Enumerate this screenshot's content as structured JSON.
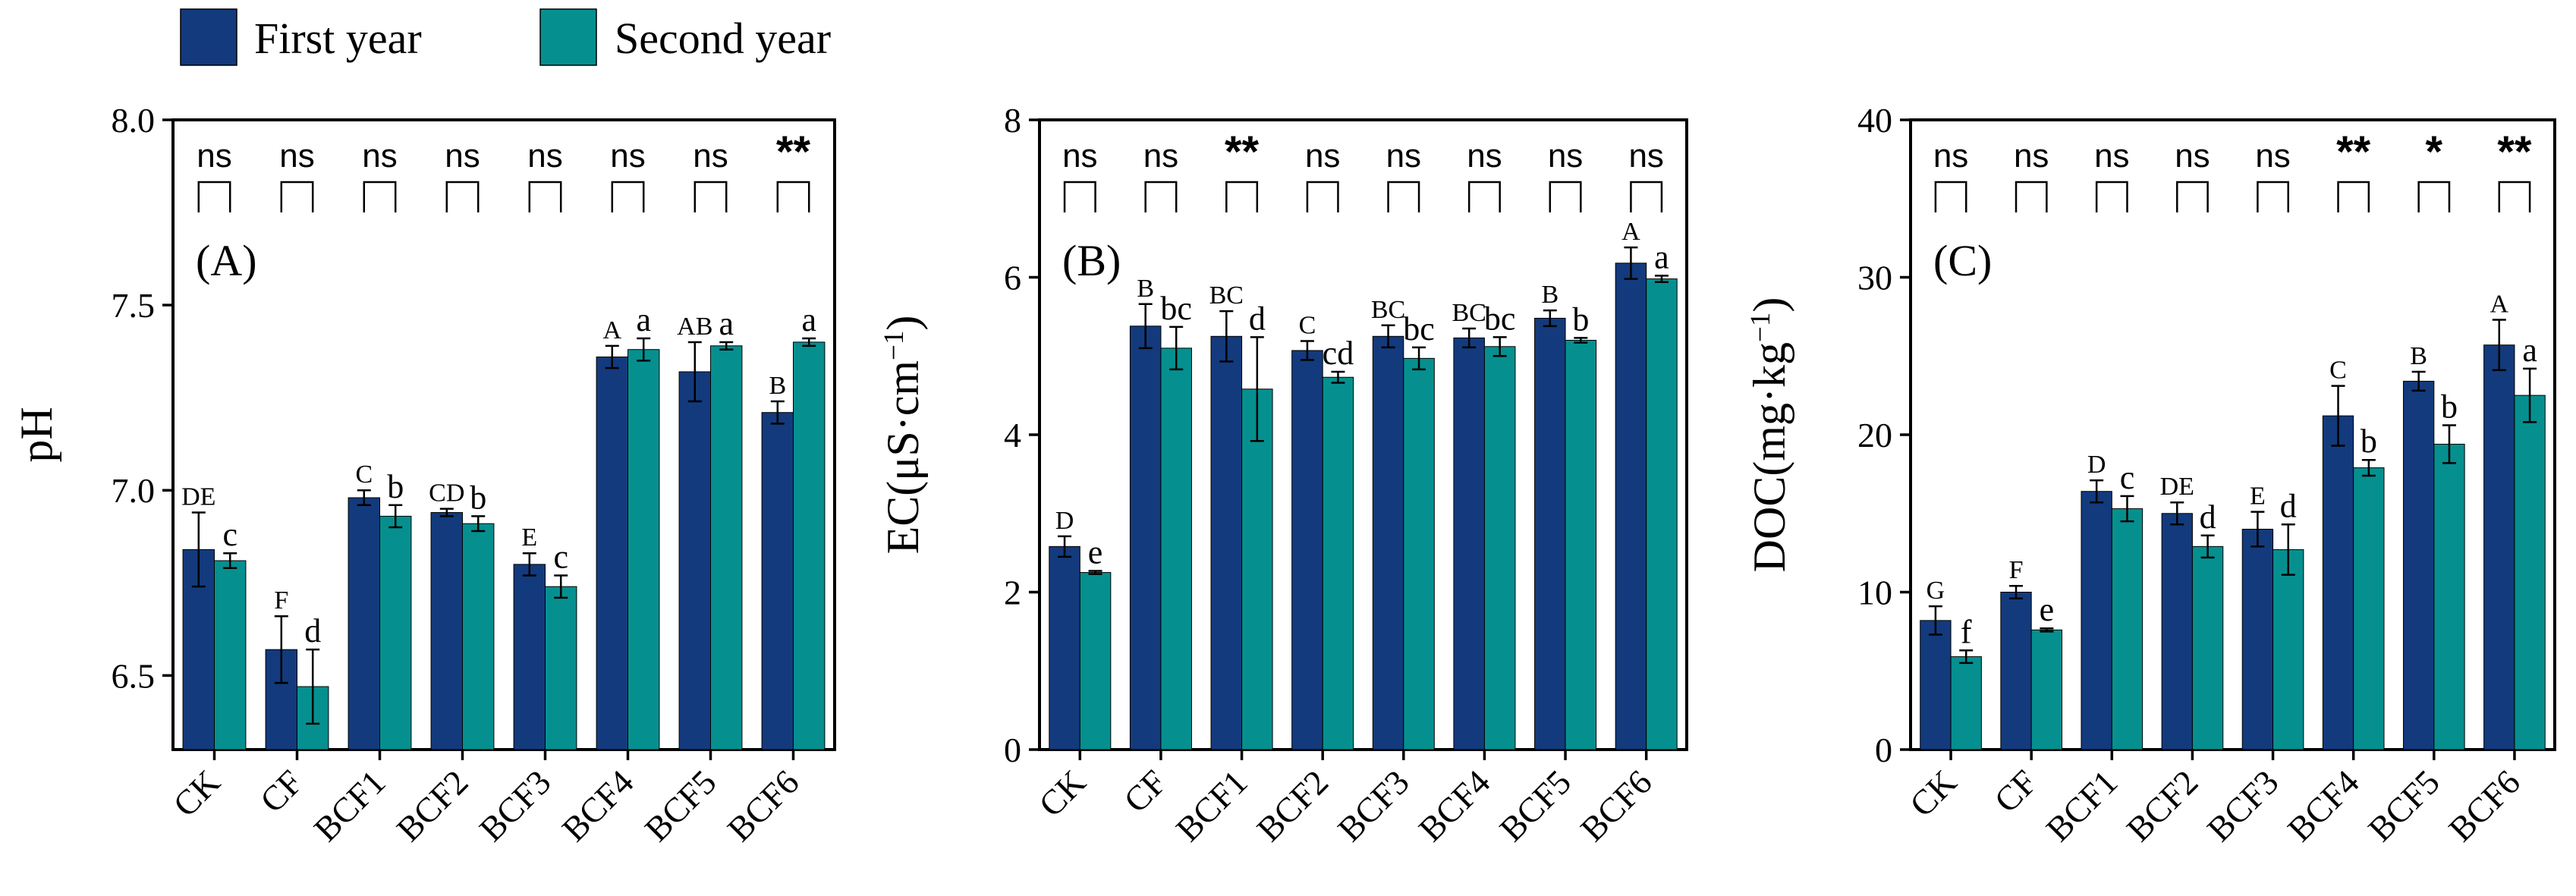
{
  "legend": {
    "items": [
      {
        "label": "First year",
        "color": "#133a7c"
      },
      {
        "label": "Second year",
        "color": "#05908f"
      }
    ],
    "placement": "top-left"
  },
  "chart_data": [
    {
      "type": "bar",
      "panel_label": "(A)",
      "ylabel": "pH",
      "ylim": [
        6.3,
        8.0
      ],
      "yticks": [
        "6.5",
        "7.0",
        "7.5",
        "8.0"
      ],
      "categories": [
        "CK",
        "CF",
        "BCF1",
        "BCF2",
        "BCF3",
        "BCF4",
        "BCF5",
        "BCF6"
      ],
      "series": [
        {
          "name": "First year",
          "values": [
            6.84,
            6.57,
            6.98,
            6.94,
            6.8,
            7.36,
            7.32,
            7.21
          ],
          "errors": [
            0.1,
            0.09,
            0.02,
            0.01,
            0.03,
            0.03,
            0.08,
            0.03
          ],
          "letters": [
            "DE",
            "F",
            "C",
            "CD",
            "E",
            "A",
            "AB",
            "B"
          ]
        },
        {
          "name": "Second year",
          "values": [
            6.81,
            6.47,
            6.93,
            6.91,
            6.74,
            7.38,
            7.39,
            7.4
          ],
          "errors": [
            0.02,
            0.1,
            0.03,
            0.02,
            0.03,
            0.03,
            0.01,
            0.01
          ],
          "letters": [
            "c",
            "d",
            "b",
            "b",
            "c",
            "a",
            "a",
            "a"
          ]
        }
      ],
      "significance": [
        "ns",
        "ns",
        "ns",
        "ns",
        "ns",
        "ns",
        "ns",
        "**"
      ],
      "grid": false
    },
    {
      "type": "bar",
      "panel_label": "(B)",
      "ylabel": "EC(μS·cm⁻¹)",
      "ylim": [
        0,
        8
      ],
      "yticks": [
        "0",
        "2",
        "4",
        "6",
        "8"
      ],
      "categories": [
        "CK",
        "CF",
        "BCF1",
        "BCF2",
        "BCF3",
        "BCF4",
        "BCF5",
        "BCF6"
      ],
      "series": [
        {
          "name": "First year",
          "values": [
            2.58,
            5.38,
            5.25,
            5.07,
            5.25,
            5.23,
            5.48,
            6.18
          ],
          "errors": [
            0.13,
            0.28,
            0.32,
            0.12,
            0.14,
            0.12,
            0.1,
            0.2
          ],
          "letters": [
            "D",
            "B",
            "BC",
            "C",
            "BC",
            "BC",
            "B",
            "A"
          ]
        },
        {
          "name": "Second year",
          "values": [
            2.25,
            5.1,
            4.58,
            4.73,
            4.97,
            5.12,
            5.2,
            5.98
          ],
          "errors": [
            0.02,
            0.27,
            0.66,
            0.07,
            0.14,
            0.12,
            0.03,
            0.04
          ],
          "letters": [
            "e",
            "bc",
            "d",
            "cd",
            "bc",
            "bc",
            "b",
            "a"
          ]
        }
      ],
      "significance": [
        "ns",
        "ns",
        "**",
        "ns",
        "ns",
        "ns",
        "ns",
        "ns"
      ],
      "grid": false
    },
    {
      "type": "bar",
      "panel_label": "(C)",
      "ylabel": "DOC(mg·kg⁻¹)",
      "ylim": [
        0,
        40
      ],
      "yticks": [
        "0",
        "10",
        "20",
        "30",
        "40"
      ],
      "categories": [
        "CK",
        "CF",
        "BCF1",
        "BCF2",
        "BCF3",
        "BCF4",
        "BCF5",
        "BCF6"
      ],
      "series": [
        {
          "name": "First year",
          "values": [
            8.2,
            10.0,
            16.4,
            15.0,
            14.0,
            21.2,
            23.4,
            25.7
          ],
          "errors": [
            0.9,
            0.4,
            0.7,
            0.7,
            1.1,
            1.9,
            0.6,
            1.6
          ],
          "letters": [
            "G",
            "F",
            "D",
            "DE",
            "E",
            "C",
            "B",
            "A"
          ]
        },
        {
          "name": "Second year",
          "values": [
            5.9,
            7.6,
            15.3,
            12.9,
            12.7,
            17.9,
            19.4,
            22.5
          ],
          "errors": [
            0.4,
            0.1,
            0.8,
            0.7,
            1.6,
            0.5,
            1.2,
            1.7
          ],
          "letters": [
            "f",
            "e",
            "c",
            "d",
            "d",
            "b",
            "b",
            "a"
          ]
        }
      ],
      "significance": [
        "ns",
        "ns",
        "ns",
        "ns",
        "ns",
        "**",
        "*",
        "**"
      ],
      "grid": false
    }
  ]
}
